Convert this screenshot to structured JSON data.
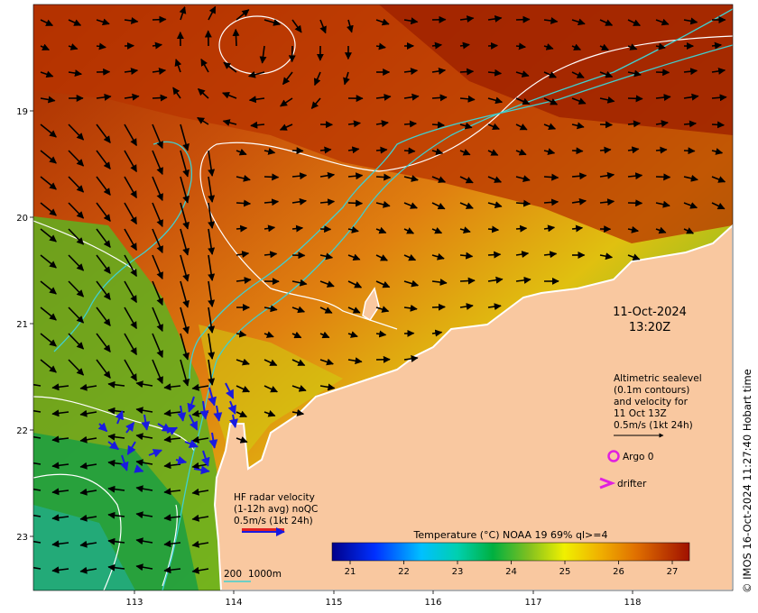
{
  "map": {
    "lon_range": [
      112.0,
      119.0
    ],
    "lat_range": [
      -23.5,
      -18.0
    ],
    "lon_ticks": [
      "113",
      "114",
      "115",
      "116",
      "117",
      "118"
    ],
    "lat_ticks": [
      "19",
      "20",
      "21",
      "22",
      "23"
    ]
  },
  "timestamp": {
    "date": "11-Oct-2024",
    "time": "13:20Z"
  },
  "sealevel_note": {
    "line1": "Altimetric sealevel",
    "line2": "(0.1m contours)",
    "line3": "and velocity for",
    "line4": "11 Oct 13Z",
    "line5": "0.5m/s (1kt 24h)"
  },
  "legend": {
    "argo": "Argo 0",
    "drifter": "drifter"
  },
  "hf_radar": {
    "line1": "HF radar velocity",
    "line2": "(1-12h avg) noQC",
    "line3": "0.5m/s (1kt 24h)"
  },
  "colorbar": {
    "title": "Temperature (°C) NOAA 19 69% ql>=4",
    "ticks": [
      "21",
      "22",
      "23",
      "24",
      "25",
      "26",
      "27"
    ]
  },
  "scale": {
    "contour_a": "200",
    "contour_b": "1000m"
  },
  "credit": "© IMOS 16-Oct-2024 11:27:40 Hobart time",
  "colors": {
    "land": "#f9c8a0",
    "warm": "#c44a00",
    "cool": "#29a82f",
    "bathymetry": "#40d0d0",
    "radar": "#1a1ae0",
    "argo": "#e020e0"
  }
}
